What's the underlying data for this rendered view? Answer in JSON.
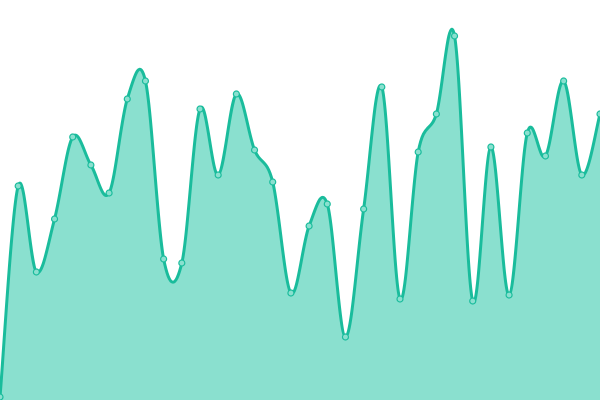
{
  "chart_data": {
    "type": "area",
    "title": "",
    "xlabel": "",
    "ylabel": "",
    "x": [
      0,
      1,
      2,
      3,
      4,
      5,
      6,
      7,
      8,
      9,
      10,
      11,
      12,
      13,
      14,
      15,
      16,
      17,
      18,
      19,
      20,
      21,
      22,
      23,
      24,
      25,
      26,
      27,
      28,
      29,
      30,
      31,
      32,
      33
    ],
    "values": [
      3,
      214,
      128,
      181,
      263,
      235,
      207,
      301,
      319,
      141,
      137,
      291,
      225,
      306,
      250,
      218,
      107,
      174,
      196,
      63,
      191,
      313,
      101,
      248,
      286,
      364,
      99,
      253,
      105,
      267,
      244,
      319,
      225,
      286
    ],
    "ylim": [
      0,
      400
    ],
    "grid": false,
    "axes_visible": false,
    "smooth": true,
    "markers": true,
    "colors": {
      "line": "#1abc9c",
      "fill": "#8ae0cf",
      "marker_fill": "#8ae0cf"
    }
  }
}
